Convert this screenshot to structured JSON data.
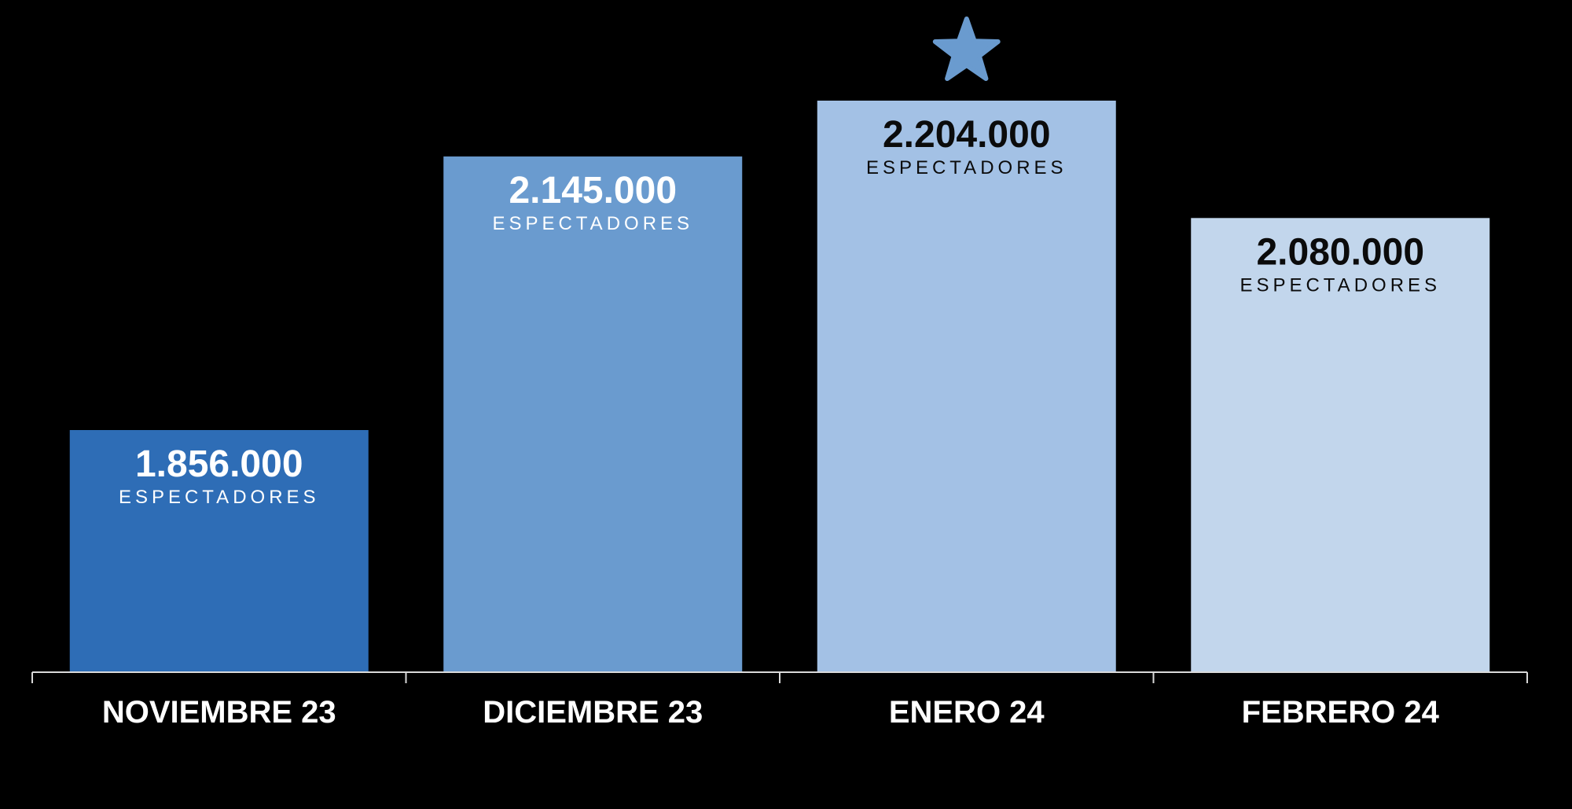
{
  "chart_data": {
    "type": "bar",
    "categories": [
      "NOVIEMBRE 23",
      "DICIEMBRE 23",
      "ENERO 24",
      "FEBRERO 24"
    ],
    "values": [
      1856000,
      2145000,
      2204000,
      2080000
    ],
    "value_labels": [
      "1.856.000",
      "2.145.000",
      "2.204.000",
      "2.080.000"
    ],
    "unit_label": "ESPECTADORES",
    "highlight_index": 2,
    "highlight_icon": "star-icon",
    "bar_colors": [
      "#2e6db6",
      "#6a9bcf",
      "#a3c1e5",
      "#c2d6ec"
    ],
    "value_text_colors": [
      "#ffffff",
      "#ffffff",
      "#0b0b0b",
      "#0b0b0b"
    ],
    "star_color": "#6a9bcf",
    "axis_color": "#d9d9d9",
    "background": "#000000",
    "title": "",
    "xlabel": "",
    "ylabel": "",
    "grid": false,
    "legend": "none"
  }
}
